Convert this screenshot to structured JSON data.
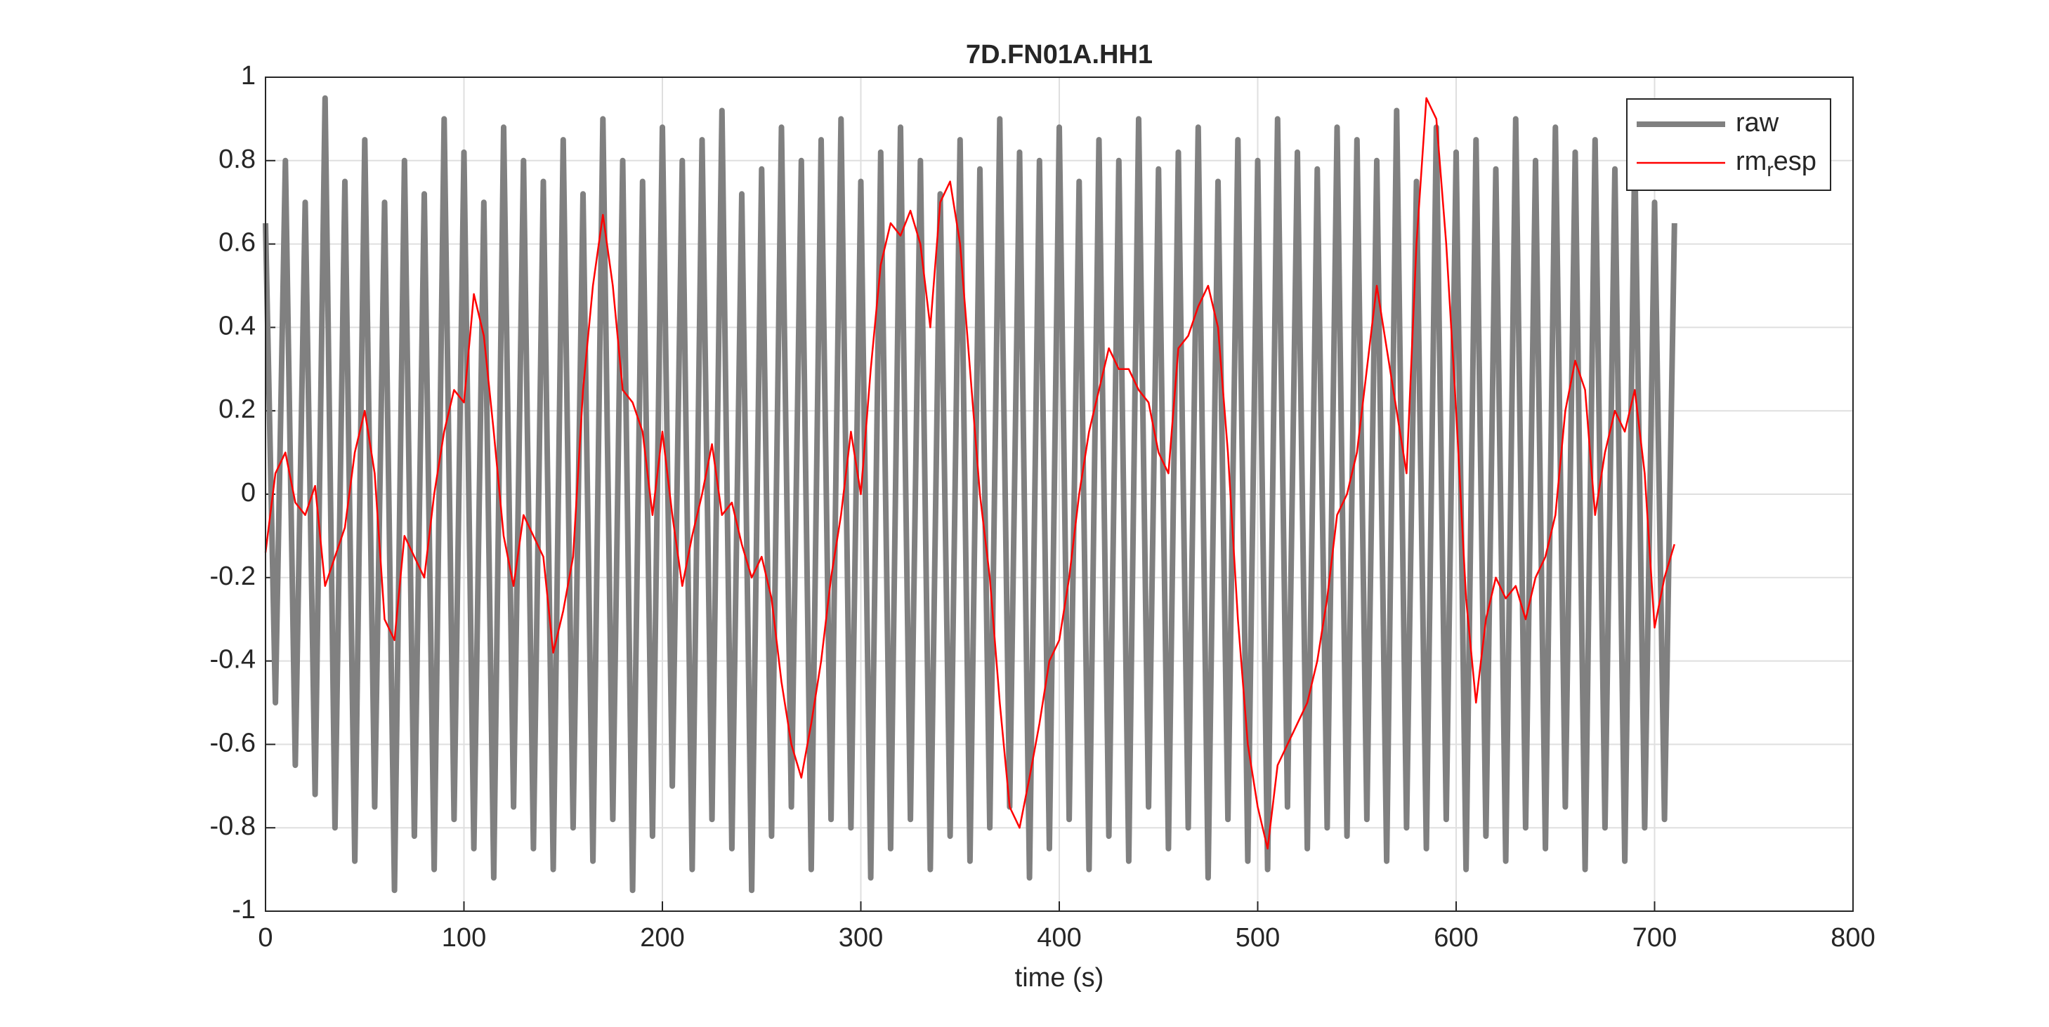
{
  "chart_data": {
    "type": "line",
    "title": "7D.FN01A.HH1",
    "x_label": "time (s)",
    "x": [
      0,
      5,
      10,
      15,
      20,
      25,
      30,
      35,
      40,
      45,
      50,
      55,
      60,
      65,
      70,
      75,
      80,
      85,
      90,
      95,
      100,
      105,
      110,
      115,
      120,
      125,
      130,
      135,
      140,
      145,
      150,
      155,
      160,
      165,
      170,
      175,
      180,
      185,
      190,
      195,
      200,
      205,
      210,
      215,
      220,
      225,
      230,
      235,
      240,
      245,
      250,
      255,
      260,
      265,
      270,
      275,
      280,
      285,
      290,
      295,
      300,
      305,
      310,
      315,
      320,
      325,
      330,
      335,
      340,
      345,
      350,
      355,
      360,
      365,
      370,
      375,
      380,
      385,
      390,
      395,
      400,
      405,
      410,
      415,
      420,
      425,
      430,
      435,
      440,
      445,
      450,
      455,
      460,
      465,
      470,
      475,
      480,
      485,
      490,
      495,
      500,
      505,
      510,
      515,
      520,
      525,
      530,
      535,
      540,
      545,
      550,
      555,
      560,
      565,
      570,
      575,
      580,
      585,
      590,
      595,
      600,
      605,
      610,
      615,
      620,
      625,
      630,
      635,
      640,
      645,
      650,
      655,
      660,
      665,
      670,
      675,
      680,
      685,
      690,
      695,
      700,
      705,
      710
    ],
    "series": [
      {
        "name": "raw",
        "color": "#808080",
        "values": [
          0.65,
          -0.5,
          0.8,
          -0.65,
          0.7,
          -0.72,
          0.95,
          -0.8,
          0.75,
          -0.88,
          0.85,
          -0.75,
          0.7,
          -0.95,
          0.8,
          -0.82,
          0.72,
          -0.9,
          0.9,
          -0.78,
          0.82,
          -0.85,
          0.7,
          -0.92,
          0.88,
          -0.75,
          0.8,
          -0.85,
          0.75,
          -0.9,
          0.85,
          -0.8,
          0.72,
          -0.88,
          0.9,
          -0.78,
          0.8,
          -0.95,
          0.75,
          -0.82,
          0.88,
          -0.7,
          0.8,
          -0.9,
          0.85,
          -0.78,
          0.92,
          -0.85,
          0.72,
          -0.95,
          0.78,
          -0.82,
          0.88,
          -0.75,
          0.8,
          -0.9,
          0.85,
          -0.78,
          0.9,
          -0.8,
          0.75,
          -0.92,
          0.82,
          -0.85,
          0.88,
          -0.78,
          0.8,
          -0.9,
          0.72,
          -0.82,
          0.85,
          -0.88,
          0.78,
          -0.8,
          0.9,
          -0.75,
          0.82,
          -0.92,
          0.8,
          -0.85,
          0.88,
          -0.78,
          0.75,
          -0.9,
          0.85,
          -0.82,
          0.8,
          -0.88,
          0.9,
          -0.75,
          0.78,
          -0.85,
          0.82,
          -0.8,
          0.88,
          -0.92,
          0.75,
          -0.78,
          0.85,
          -0.88,
          0.8,
          -0.9,
          0.9,
          -0.75,
          0.82,
          -0.85,
          0.78,
          -0.8,
          0.88,
          -0.82,
          0.85,
          -0.78,
          0.8,
          -0.88,
          0.92,
          -0.8,
          0.75,
          -0.85,
          0.88,
          -0.78,
          0.82,
          -0.9,
          0.85,
          -0.82,
          0.78,
          -0.88,
          0.9,
          -0.8,
          0.8,
          -0.85,
          0.88,
          -0.75,
          0.82,
          -0.9,
          0.85,
          -0.8,
          0.78,
          -0.88,
          0.82,
          -0.8,
          0.7,
          -0.78,
          0.65
        ]
      },
      {
        "name": "rm_resp",
        "color": "#ff0000",
        "values": [
          -0.14,
          0.05,
          0.1,
          -0.02,
          -0.05,
          0.02,
          -0.22,
          -0.15,
          -0.08,
          0.1,
          0.2,
          0.05,
          -0.3,
          -0.35,
          -0.1,
          -0.15,
          -0.2,
          0.0,
          0.15,
          0.25,
          0.22,
          0.48,
          0.38,
          0.15,
          -0.1,
          -0.22,
          -0.05,
          -0.1,
          -0.15,
          -0.38,
          -0.28,
          -0.15,
          0.25,
          0.5,
          0.67,
          0.5,
          0.25,
          0.22,
          0.15,
          -0.05,
          0.15,
          -0.05,
          -0.22,
          -0.1,
          0.0,
          0.12,
          -0.05,
          -0.02,
          -0.12,
          -0.2,
          -0.15,
          -0.25,
          -0.45,
          -0.6,
          -0.68,
          -0.55,
          -0.4,
          -0.2,
          -0.05,
          0.15,
          0.0,
          0.3,
          0.55,
          0.65,
          0.62,
          0.68,
          0.6,
          0.4,
          0.7,
          0.75,
          0.6,
          0.3,
          0.0,
          -0.2,
          -0.5,
          -0.75,
          -0.8,
          -0.68,
          -0.55,
          -0.4,
          -0.35,
          -0.2,
          0.0,
          0.15,
          0.25,
          0.35,
          0.3,
          0.3,
          0.25,
          0.22,
          0.1,
          0.05,
          0.35,
          0.38,
          0.45,
          0.5,
          0.4,
          0.1,
          -0.3,
          -0.6,
          -0.75,
          -0.85,
          -0.65,
          -0.6,
          -0.55,
          -0.5,
          -0.4,
          -0.25,
          -0.05,
          0.0,
          0.1,
          0.3,
          0.5,
          0.35,
          0.2,
          0.05,
          0.6,
          0.95,
          0.9,
          0.6,
          0.2,
          -0.25,
          -0.5,
          -0.3,
          -0.2,
          -0.25,
          -0.22,
          -0.3,
          -0.2,
          -0.15,
          -0.05,
          0.2,
          0.32,
          0.25,
          -0.05,
          0.1,
          0.2,
          0.15,
          0.25,
          0.05,
          -0.32,
          -0.2,
          -0.12
        ]
      }
    ],
    "xlim": [
      0,
      800
    ],
    "xticks": [
      0,
      100,
      200,
      300,
      400,
      500,
      600,
      700,
      800
    ],
    "ylim": [
      -1,
      1
    ],
    "yticks": [
      -1,
      -0.8,
      -0.6,
      -0.4,
      -0.2,
      0,
      0.2,
      0.4,
      0.6,
      0.8,
      1
    ],
    "grid": true,
    "legend": "northeast"
  }
}
